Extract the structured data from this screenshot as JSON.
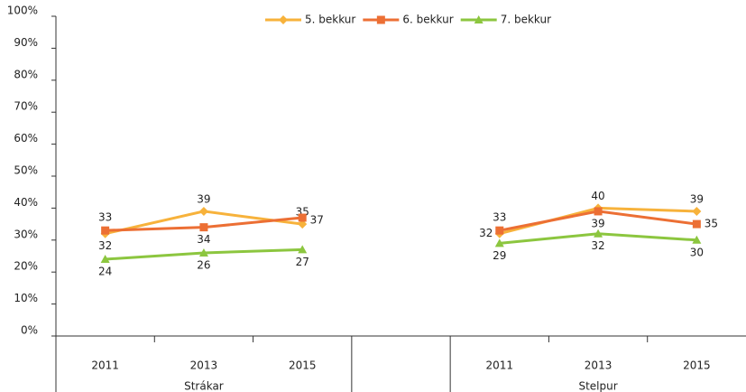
{
  "chart_data": {
    "type": "line",
    "categories": [
      "2011",
      "2013",
      "2015",
      null,
      "2011",
      "2013",
      "2015"
    ],
    "groups": [
      "Strákar",
      "Stelpur"
    ],
    "series": [
      {
        "name": "5. bekkur",
        "color": "#f7b23b",
        "marker": "diamond",
        "values": [
          32,
          39,
          35,
          null,
          32,
          40,
          39
        ]
      },
      {
        "name": "6. bekkur",
        "color": "#ec6f34",
        "marker": "square",
        "values": [
          33,
          34,
          37,
          null,
          33,
          39,
          35
        ]
      },
      {
        "name": "7. bekkur",
        "color": "#8cc63f",
        "marker": "triangle",
        "values": [
          24,
          26,
          27,
          null,
          29,
          32,
          30
        ]
      }
    ],
    "ylim": [
      0,
      100
    ],
    "yticks": [
      {
        "value": 0,
        "label": "0%"
      },
      {
        "value": 10,
        "label": "10%"
      },
      {
        "value": 20,
        "label": "20%"
      },
      {
        "value": 30,
        "label": "30%"
      },
      {
        "value": 40,
        "label": "40%"
      },
      {
        "value": 50,
        "label": "50%"
      },
      {
        "value": 60,
        "label": "60%"
      },
      {
        "value": 70,
        "label": "70%"
      },
      {
        "value": 80,
        "label": "80%"
      },
      {
        "value": 90,
        "label": "90%"
      },
      {
        "value": 100,
        "label": "100%"
      }
    ],
    "legend": "top"
  }
}
